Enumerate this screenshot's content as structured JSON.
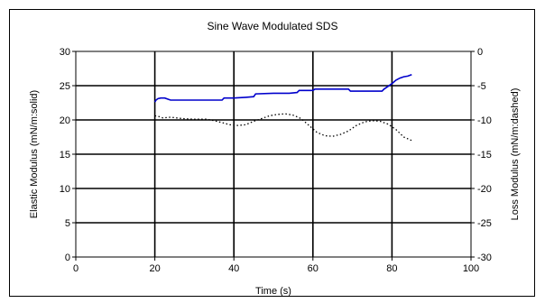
{
  "chart_data": {
    "type": "line",
    "title": "Sine Wave Modulated SDS",
    "xlabel": "Time (s)",
    "ylabel": "Elastic Modulus (mN/m:solid)",
    "ylabel_right": "Loss Modulus (mN/m:dashed)",
    "xlim": [
      0,
      100
    ],
    "ylim": [
      0,
      30
    ],
    "ylim_right": [
      -30,
      0
    ],
    "x_ticks": [
      "0",
      "20",
      "40",
      "60",
      "80",
      "100"
    ],
    "y_ticks": [
      "0",
      "5",
      "10",
      "15",
      "20",
      "25",
      "30"
    ],
    "y_ticks_right": [
      "-30",
      "-25",
      "-20",
      "-15",
      "-10",
      "-5",
      "0"
    ],
    "grid": true,
    "colors": {
      "elastic": "#0000cc",
      "loss": "#000000",
      "grid": "#000000"
    },
    "series": [
      {
        "axis": "left",
        "style": "solid",
        "x": [
          20,
          20.3,
          20.8,
          21.5,
          22.5,
          23.5,
          24,
          26,
          30,
          34,
          37,
          37.5,
          40,
          43,
          45,
          45.5,
          50,
          54,
          56,
          56.5,
          60,
          60.5,
          64,
          68,
          69,
          69.5,
          72,
          75,
          77.5,
          78,
          79,
          80,
          81,
          82,
          83,
          84,
          85
        ],
        "values": [
          22.6,
          22.9,
          23.1,
          23.2,
          23.2,
          23.0,
          22.9,
          22.9,
          22.9,
          22.9,
          22.9,
          23.2,
          23.2,
          23.3,
          23.4,
          23.8,
          23.9,
          23.9,
          24.0,
          24.3,
          24.3,
          24.5,
          24.5,
          24.5,
          24.5,
          24.2,
          24.2,
          24.2,
          24.2,
          24.5,
          24.9,
          25.3,
          25.8,
          26.1,
          26.3,
          26.4,
          26.6
        ]
      },
      {
        "axis": "right",
        "style": "dashed",
        "x": [
          20,
          21,
          22,
          24,
          27,
          30,
          33,
          35,
          37,
          39,
          41,
          43,
          45,
          47,
          49,
          51,
          53,
          55,
          57,
          59,
          61,
          63,
          65,
          67,
          69,
          71,
          73,
          75,
          77,
          79,
          81,
          83,
          85
        ],
        "values": [
          -9.4,
          -9.5,
          -9.7,
          -9.6,
          -9.8,
          -9.9,
          -9.9,
          -10.1,
          -10.4,
          -10.7,
          -10.8,
          -10.7,
          -10.2,
          -9.8,
          -9.4,
          -9.2,
          -9.1,
          -9.3,
          -9.8,
          -10.8,
          -11.8,
          -12.3,
          -12.4,
          -12.1,
          -11.6,
          -10.8,
          -10.3,
          -10.1,
          -10.2,
          -10.6,
          -11.4,
          -12.5,
          -13.0
        ]
      }
    ]
  }
}
